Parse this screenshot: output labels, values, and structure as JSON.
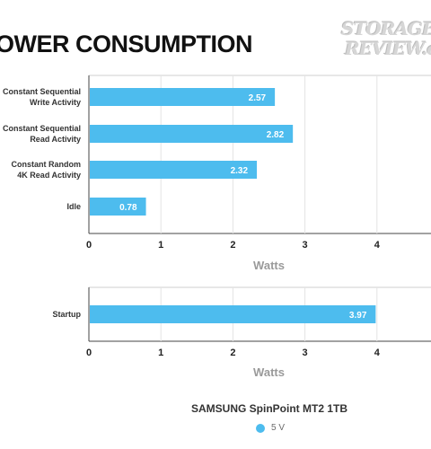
{
  "title": "OWER CONSUMPTION",
  "logo": {
    "line1": "STORAGE",
    "line2": "REVIEW.co"
  },
  "colors": {
    "bar": "#4dbcee",
    "axis": "#444444",
    "grid": "#e4e4e4",
    "label": "#333333",
    "value_text": "#ffffff"
  },
  "chart_data": [
    {
      "type": "bar",
      "orientation": "horizontal",
      "categories": [
        [
          "Constant Sequential",
          "Write Activity"
        ],
        [
          "Constant Sequential",
          "Read Activity"
        ],
        [
          "Constant Random",
          "4K Read Activity"
        ],
        [
          "Idle"
        ]
      ],
      "series": [
        {
          "name": "5 V",
          "values": [
            2.57,
            2.82,
            2.32,
            0.78
          ]
        }
      ],
      "value_labels": [
        "2.57",
        "2.82",
        "2.32",
        "0.78"
      ],
      "xlabel": "Watts",
      "xticks": [
        "0",
        "1",
        "2",
        "3",
        "4"
      ],
      "xlim": [
        0,
        5
      ],
      "grid": true
    },
    {
      "type": "bar",
      "orientation": "horizontal",
      "categories": [
        [
          "Startup"
        ]
      ],
      "series": [
        {
          "name": "5 V",
          "values": [
            3.97
          ]
        }
      ],
      "value_labels": [
        "3.97"
      ],
      "xlabel": "Watts",
      "xticks": [
        "0",
        "1",
        "2",
        "3",
        "4"
      ],
      "xlim": [
        0,
        5
      ],
      "grid": true
    }
  ],
  "legend": {
    "title": "SAMSUNG SpinPoint MT2 1TB",
    "items": [
      {
        "label": "5 V",
        "color": "#4dbcee"
      }
    ],
    "placement": "bottom-center"
  }
}
